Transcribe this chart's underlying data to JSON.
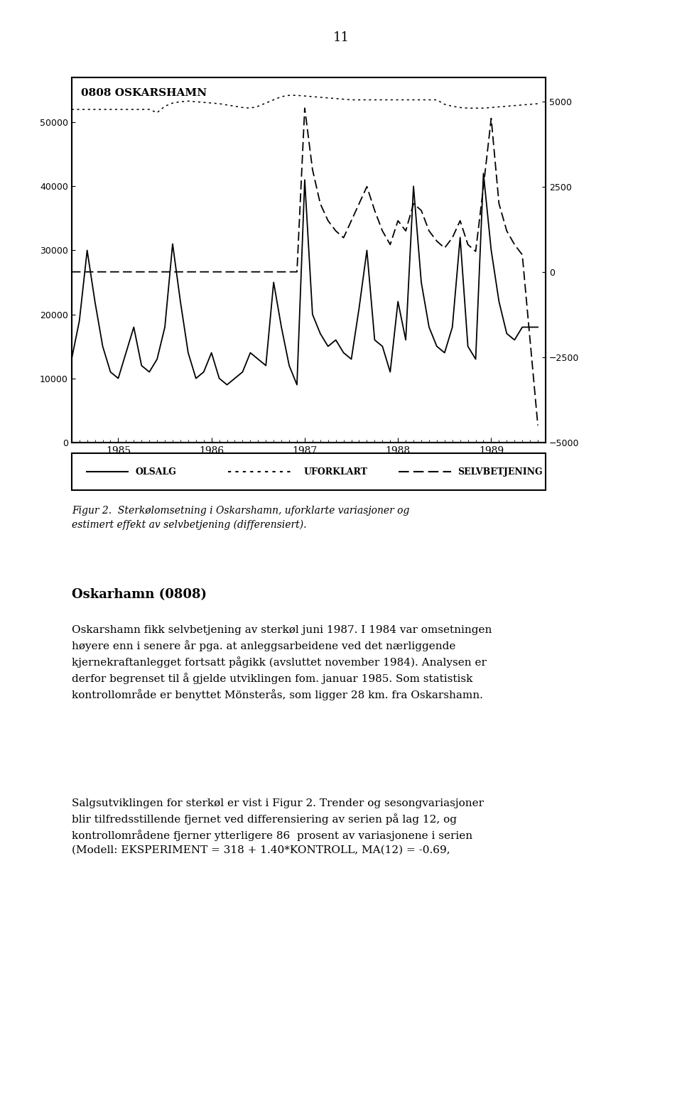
{
  "page_number": "11",
  "chart_title_inner": "0808 OSKARSHAMN",
  "left_ylim": [
    0,
    57000
  ],
  "left_yticks": [
    0,
    10000,
    20000,
    30000,
    40000,
    50000
  ],
  "right_ylim": [
    -5000,
    5700
  ],
  "right_yticks": [
    -5000,
    -2500,
    0,
    2500,
    5000
  ],
  "xlim_months": [
    0,
    61
  ],
  "x_tick_labels": [
    "1985",
    "1986",
    "1987",
    "1988",
    "1989"
  ],
  "x_tick_positions": [
    6,
    18,
    30,
    42,
    54
  ],
  "legend_items": [
    "OLSALG",
    "UFORKLART",
    "SELVBETJENING"
  ],
  "figure_caption": "Figur 2.  Sterkølomsetning i Oskarshamn, uforklarte variasjoner og\nestimert effekt av selvbetjening (differensiert).",
  "section_header": "Oskarhamn (0808)",
  "body_text_1": "Oskarshamn fikk selvbetjening av sterkøl juni 1987. I 1984 var omsetningen\nhøyere enn i senere år pga. at anleggsarbeidene ved det nærliggende\nkjernekraftanlegget fortsatt pågikk (avsluttet november 1984). Analysen er\nderfor begrenset til å gjelde utviklingen fom. januar 1985. Som statistisk\nkontrollområde er benyttet Mönsterås, som ligger 28 km. fra Oskarshamn.",
  "body_text_2": "Salgsutviklingen for sterkøl er vist i Figur 2. Trender og sesongvariasjoner\nblir tilfredsstillende fjernet ved differensiering av serien på lag 12, og\nkontrollområdene fjerner ytterligere 86  prosent av variasjonene i serien\n(Modell: EKSPERIMENT = 318 + 1.40*KONTROLL, MA(12) = -0.69,",
  "olsalg": [
    13000,
    19000,
    30000,
    22000,
    15000,
    11000,
    10000,
    14000,
    18000,
    12000,
    11000,
    13000,
    18000,
    31000,
    22000,
    14000,
    10000,
    11000,
    14000,
    10000,
    9000,
    10000,
    11000,
    14000,
    13000,
    12000,
    25000,
    18000,
    12000,
    9000,
    41000,
    20000,
    17000,
    15000,
    16000,
    14000,
    13000,
    21000,
    30000,
    16000,
    15000,
    11000,
    22000,
    16000,
    40000,
    25000,
    18000,
    15000,
    14000,
    18000,
    32000,
    15000,
    13000,
    42000,
    30000,
    22000,
    17000,
    16000,
    18000,
    18000,
    18000
  ],
  "uforklart": [
    52000,
    52000,
    52000,
    52000,
    52000,
    52000,
    52000,
    52000,
    52000,
    52000,
    52000,
    51500,
    52500,
    53000,
    53200,
    53300,
    53200,
    53100,
    53000,
    52900,
    52700,
    52500,
    52300,
    52200,
    52500,
    53000,
    53500,
    54000,
    54200,
    54200,
    54100,
    54000,
    53900,
    53800,
    53700,
    53600,
    53500,
    53500,
    53500,
    53500,
    53500,
    53500,
    53500,
    53500,
    53500,
    53500,
    53500,
    53500,
    52800,
    52500,
    52300,
    52200,
    52200,
    52200,
    52300,
    52400,
    52500,
    52600,
    52700,
    52800,
    52900
  ],
  "selvbetjening": [
    0,
    0,
    0,
    0,
    0,
    0,
    0,
    0,
    0,
    0,
    0,
    0,
    0,
    0,
    0,
    0,
    0,
    0,
    0,
    0,
    0,
    0,
    0,
    0,
    0,
    0,
    0,
    0,
    0,
    0,
    4800,
    3000,
    2000,
    1500,
    1200,
    1000,
    1500,
    2000,
    2500,
    1800,
    1200,
    800,
    1500,
    1200,
    2000,
    1800,
    1200,
    900,
    700,
    1000,
    1500,
    800,
    600,
    2500,
    4500,
    2000,
    1200,
    800,
    500,
    -2000,
    -4500
  ]
}
